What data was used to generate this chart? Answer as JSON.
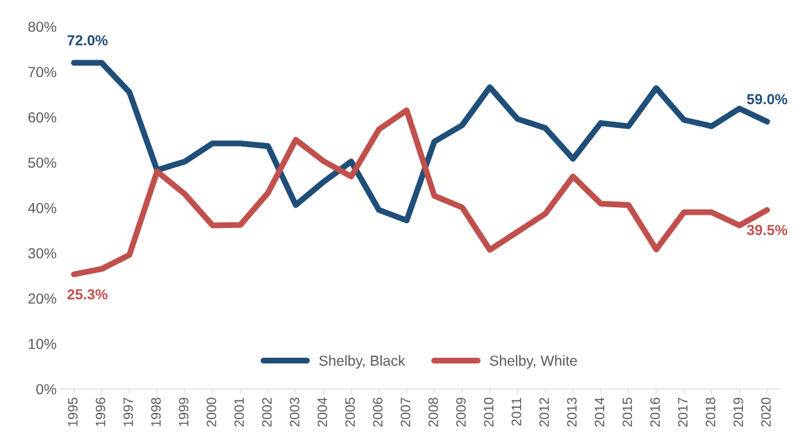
{
  "chart_data": {
    "type": "line",
    "categories": [
      "1995",
      "1996",
      "1997",
      "1998",
      "1999",
      "2000",
      "2001",
      "2002",
      "2003",
      "2004",
      "2005",
      "2006",
      "2007",
      "2008",
      "2009",
      "2010",
      "2011",
      "2012",
      "2013",
      "2014",
      "2015",
      "2016",
      "2017",
      "2018",
      "2019",
      "2020"
    ],
    "series": [
      {
        "name": "Shelby, Black",
        "color": "#1f4e79",
        "values": [
          72.0,
          72.0,
          65.5,
          48.3,
          50.2,
          54.2,
          54.2,
          53.6,
          40.6,
          45.7,
          50.2,
          39.5,
          37.2,
          54.6,
          58.2,
          66.6,
          59.6,
          57.6,
          50.8,
          58.7,
          58.0,
          66.4,
          59.4,
          58.0,
          61.9,
          59.0
        ],
        "value_labels": [
          "72.0%",
          null,
          null,
          null,
          null,
          null,
          null,
          null,
          null,
          null,
          null,
          null,
          null,
          null,
          null,
          null,
          null,
          null,
          null,
          null,
          null,
          null,
          null,
          null,
          null,
          "59.0%"
        ]
      },
      {
        "name": "Shelby, White",
        "color": "#c0504d",
        "values": [
          25.3,
          26.5,
          29.6,
          48.0,
          43.0,
          36.1,
          36.2,
          43.3,
          55.0,
          50.3,
          46.9,
          57.3,
          61.5,
          42.6,
          40.1,
          30.7,
          34.7,
          38.7,
          46.9,
          40.9,
          40.6,
          30.8,
          39.0,
          39.0,
          36.1,
          39.5
        ],
        "value_labels": [
          "25.3%",
          null,
          null,
          null,
          null,
          null,
          null,
          null,
          null,
          null,
          null,
          null,
          null,
          null,
          null,
          null,
          null,
          null,
          null,
          null,
          null,
          null,
          null,
          null,
          null,
          "39.5%"
        ]
      }
    ],
    "ylim": [
      0,
      80
    ],
    "yticks": [
      {
        "value": 0,
        "label": "0%"
      },
      {
        "value": 10,
        "label": "10%"
      },
      {
        "value": 20,
        "label": "20%"
      },
      {
        "value": 30,
        "label": "30%"
      },
      {
        "value": 40,
        "label": "40%"
      },
      {
        "value": 50,
        "label": "50%"
      },
      {
        "value": 60,
        "label": "60%"
      },
      {
        "value": 70,
        "label": "70%"
      },
      {
        "value": 80,
        "label": "80%"
      }
    ],
    "grid": false,
    "legend": "bottom",
    "marker": "none",
    "line_style": "solid"
  }
}
